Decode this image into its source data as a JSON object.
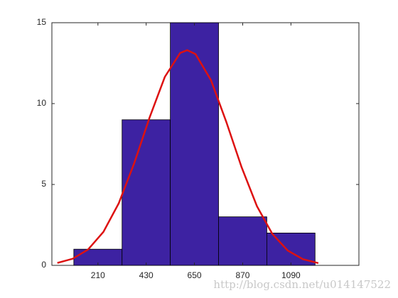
{
  "chart_data": {
    "type": "histogram",
    "bins": [
      100,
      320,
      540,
      760,
      980,
      1200
    ],
    "values": [
      1,
      9,
      15,
      3,
      2
    ],
    "color": "#3d22a2",
    "curve": {
      "color": "#dd1111",
      "x": [
        25,
        95,
        165,
        235,
        305,
        375,
        445,
        515,
        585,
        617,
        655,
        725,
        795,
        865,
        935,
        1005,
        1075,
        1145,
        1215
      ],
      "values": [
        0.15,
        0.41,
        0.98,
        2.07,
        3.84,
        6.3,
        9.12,
        11.65,
        13.13,
        13.3,
        13.06,
        11.46,
        8.88,
        6.07,
        3.66,
        1.95,
        0.92,
        0.38,
        0.14
      ]
    },
    "xlim": [
      0,
      1400
    ],
    "xticks": [
      210,
      430,
      650,
      870,
      1090
    ],
    "ylim": [
      0,
      15
    ],
    "yticks": [
      0,
      5,
      10,
      15
    ],
    "grid": false,
    "watermark": "http://blog.csdn.net/u014147522"
  }
}
